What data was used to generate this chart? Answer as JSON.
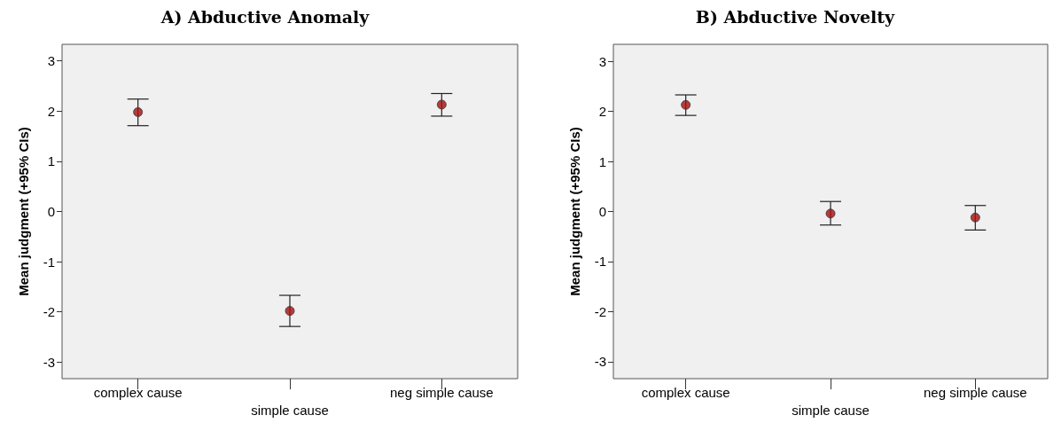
{
  "chart_data": [
    {
      "type": "scatter",
      "title": "A) Abductive Anomaly",
      "ylabel": "Mean judgment (+95% CIs)",
      "categories": [
        "complex cause",
        "simple cause",
        "neg simple cause"
      ],
      "series": [
        {
          "color": "#a50f0f",
          "values": [
            1.98,
            -1.98,
            2.13
          ],
          "errors": [
            [
              1.71,
              2.24
            ],
            [
              -2.29,
              -1.67
            ],
            [
              1.9,
              2.35
            ]
          ]
        }
      ],
      "ylim": [
        -3.33,
        3.33
      ],
      "yticks": [
        -3,
        -2,
        -1,
        0,
        1,
        2,
        3
      ],
      "grid": false,
      "marker": "circle"
    },
    {
      "type": "scatter",
      "title": "B) Abductive Novelty",
      "ylabel": "Mean judgment (+95% CIs)",
      "categories": [
        "complex cause",
        "simple cause",
        "neg simple cause"
      ],
      "series": [
        {
          "color": "#a50f0f",
          "values": [
            2.13,
            -0.04,
            -0.12
          ],
          "errors": [
            [
              1.92,
              2.33
            ],
            [
              -0.27,
              0.2
            ],
            [
              -0.37,
              0.12
            ]
          ]
        }
      ],
      "ylim": [
        -3.34,
        3.34
      ],
      "yticks": [
        -3,
        -2,
        -1,
        0,
        1,
        2,
        3
      ],
      "grid": false,
      "marker": "circle"
    }
  ]
}
